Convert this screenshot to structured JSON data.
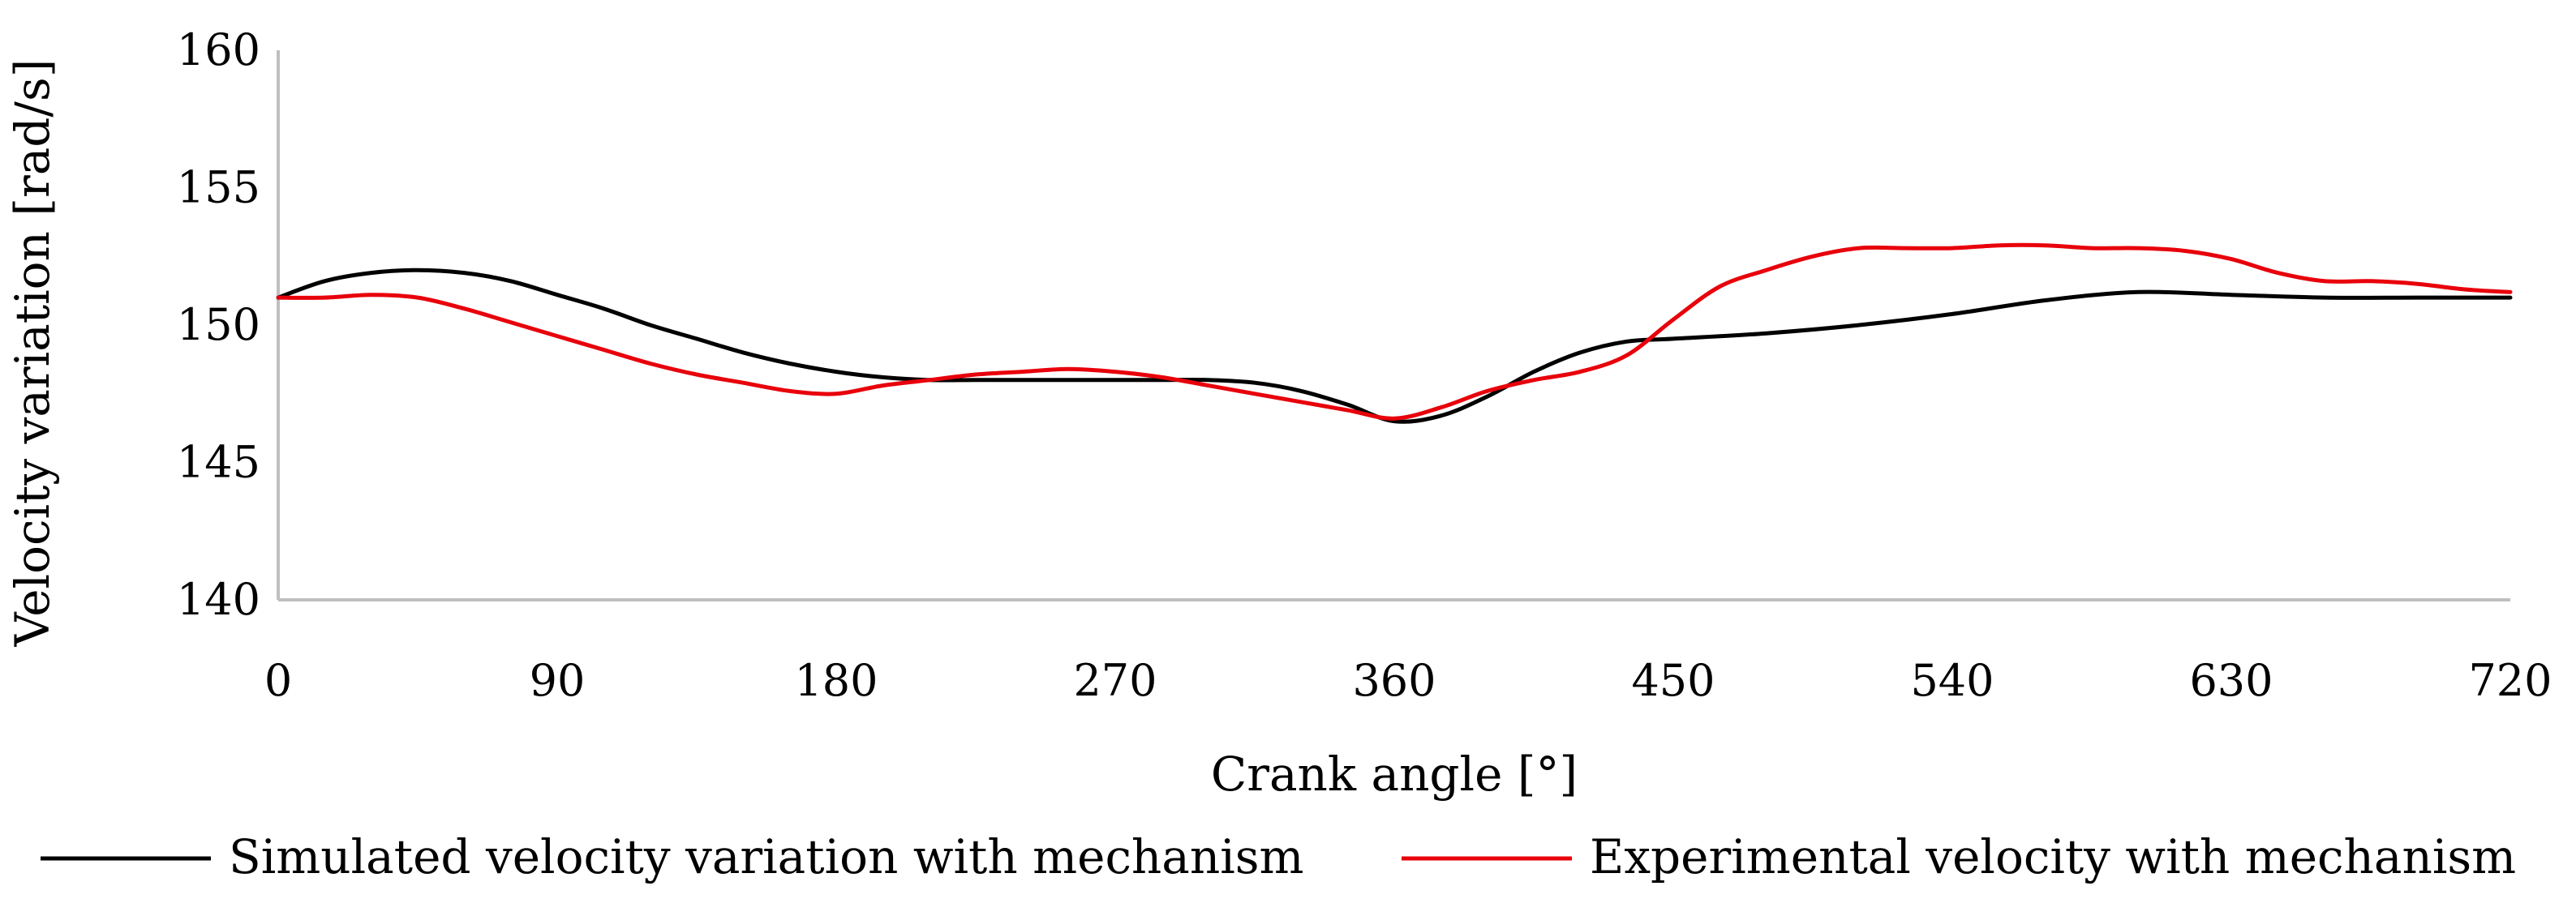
{
  "chart_data": {
    "type": "line",
    "title": "",
    "xlabel": "Crank angle [°]",
    "ylabel": "Velocity variation [rad/s]",
    "xlim": [
      0,
      720
    ],
    "ylim": [
      140,
      160
    ],
    "xticks": [
      0,
      90,
      180,
      270,
      360,
      450,
      540,
      630,
      720
    ],
    "yticks": [
      140,
      145,
      150,
      155,
      160
    ],
    "grid": false,
    "legend_position": "bottom",
    "series": [
      {
        "name": "Simulated velocity variation with mechanism",
        "color": "#000000",
        "x": [
          0,
          15,
          30,
          45,
          60,
          75,
          90,
          105,
          120,
          135,
          150,
          165,
          180,
          195,
          210,
          225,
          240,
          255,
          270,
          285,
          300,
          315,
          330,
          345,
          360,
          375,
          390,
          405,
          420,
          435,
          450,
          480,
          510,
          540,
          570,
          600,
          630,
          660,
          690,
          720
        ],
        "y": [
          151.0,
          151.6,
          151.9,
          152.0,
          151.9,
          151.6,
          151.1,
          150.6,
          150.0,
          149.5,
          149.0,
          148.6,
          148.3,
          148.1,
          148.0,
          148.0,
          148.0,
          148.0,
          148.0,
          148.0,
          148.0,
          147.9,
          147.6,
          147.1,
          146.5,
          146.7,
          147.4,
          148.3,
          149.0,
          149.4,
          149.5,
          149.7,
          150.0,
          150.4,
          150.9,
          151.2,
          151.1,
          151.0,
          151.0,
          151.0
        ]
      },
      {
        "name": "Experimental velocity with mechanism",
        "color": "#e8000b",
        "x": [
          0,
          15,
          30,
          45,
          60,
          75,
          90,
          105,
          120,
          135,
          150,
          165,
          180,
          195,
          210,
          225,
          240,
          255,
          270,
          285,
          300,
          315,
          330,
          345,
          360,
          375,
          390,
          405,
          420,
          435,
          450,
          465,
          480,
          495,
          510,
          525,
          540,
          555,
          570,
          585,
          600,
          615,
          630,
          645,
          660,
          675,
          690,
          705,
          720
        ],
        "y": [
          151.0,
          151.0,
          151.1,
          151.0,
          150.6,
          150.1,
          149.6,
          149.1,
          148.6,
          148.2,
          147.9,
          147.6,
          147.5,
          147.8,
          148.0,
          148.2,
          148.3,
          148.4,
          148.3,
          148.1,
          147.8,
          147.5,
          147.2,
          146.9,
          146.6,
          147.0,
          147.6,
          148.0,
          148.3,
          148.9,
          150.2,
          151.4,
          152.0,
          152.5,
          152.8,
          152.8,
          152.8,
          152.9,
          152.9,
          152.8,
          152.8,
          152.7,
          152.4,
          151.9,
          151.6,
          151.6,
          151.5,
          151.3,
          151.2
        ]
      }
    ]
  }
}
